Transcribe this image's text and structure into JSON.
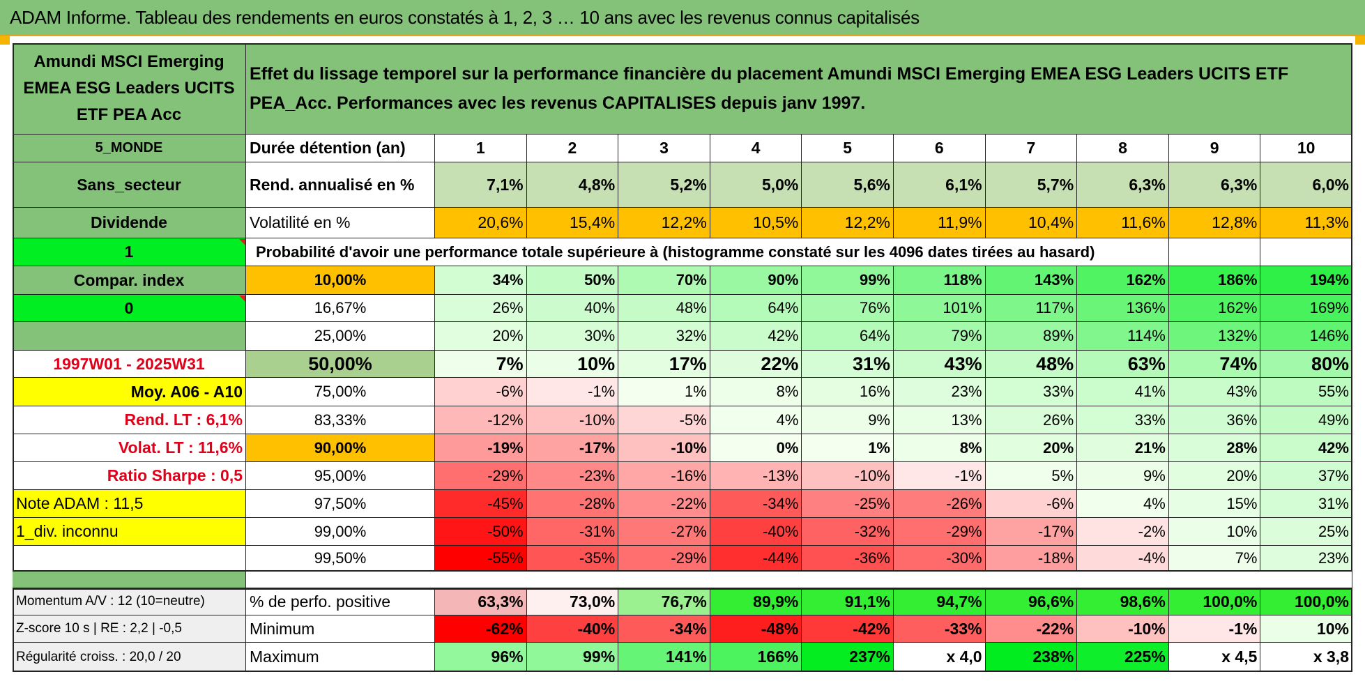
{
  "window": {
    "title": "ADAM Informe. Tableau des rendements en euros constatés à 1, 2, 3 … 10 ans avec les revenus connus capitalisés"
  },
  "fund": {
    "name": "Amundi MSCI Emerging EMEA ESG Leaders UCITS ETF PEA  Acc",
    "description": "Effet du lissage temporel sur la performance financière du placement Amundi MSCI Emerging EMEA ESG Leaders UCITS ETF PEA_Acc. Performances avec les revenus CAPITALISES depuis janv 1997.",
    "zone": "5_MONDE",
    "sector": "Sans_secteur",
    "dividend_label": "Dividende",
    "dividend_value": "1",
    "compar_label": "Compar. index",
    "compar_value": "0",
    "period": "1997W01 - 2025W31",
    "moy": "Moy. A06 - A10",
    "rend_lt": "Rend. LT :    6,1%",
    "volat_lt": "Volat. LT :    11,6%",
    "sharpe": "Ratio Sharpe :    0,5",
    "note": "Note ADAM : 11,5",
    "div_status": "1_div. inconnu"
  },
  "header": {
    "duration_label": "Durée détention (an)",
    "years": [
      "1",
      "2",
      "3",
      "4",
      "5",
      "6",
      "7",
      "8",
      "9",
      "10"
    ],
    "rend_label": "Rend. annualisé en %",
    "rend": [
      "7,1%",
      "4,8%",
      "5,2%",
      "5,0%",
      "5,6%",
      "6,1%",
      "5,7%",
      "6,3%",
      "6,3%",
      "6,0%"
    ],
    "vol_label": "Volatilité en %",
    "vol": [
      "20,6%",
      "15,4%",
      "12,2%",
      "10,5%",
      "12,2%",
      "11,9%",
      "10,4%",
      "11,6%",
      "12,8%",
      "11,3%"
    ],
    "prob_label": "Probabilité d'avoir une performance totale supérieure à (histogramme constaté sur les 4096 dates tirées au hasard)"
  },
  "prob_rows": [
    {
      "p": "10,00%",
      "v": [
        "34%",
        "50%",
        "70%",
        "90%",
        "99%",
        "118%",
        "143%",
        "162%",
        "186%",
        "194%"
      ]
    },
    {
      "p": "16,67%",
      "v": [
        "26%",
        "40%",
        "48%",
        "64%",
        "76%",
        "101%",
        "117%",
        "136%",
        "162%",
        "169%"
      ]
    },
    {
      "p": "25,00%",
      "v": [
        "20%",
        "30%",
        "32%",
        "42%",
        "64%",
        "79%",
        "89%",
        "114%",
        "132%",
        "146%"
      ]
    },
    {
      "p": "50,00%",
      "v": [
        "7%",
        "10%",
        "17%",
        "22%",
        "31%",
        "43%",
        "48%",
        "63%",
        "74%",
        "80%"
      ]
    },
    {
      "p": "75,00%",
      "v": [
        "-6%",
        "-1%",
        "1%",
        "8%",
        "16%",
        "23%",
        "33%",
        "41%",
        "43%",
        "55%"
      ]
    },
    {
      "p": "83,33%",
      "v": [
        "-12%",
        "-10%",
        "-5%",
        "4%",
        "9%",
        "13%",
        "26%",
        "33%",
        "36%",
        "49%"
      ]
    },
    {
      "p": "90,00%",
      "v": [
        "-19%",
        "-17%",
        "-10%",
        "0%",
        "1%",
        "8%",
        "20%",
        "21%",
        "28%",
        "42%"
      ]
    },
    {
      "p": "95,00%",
      "v": [
        "-29%",
        "-23%",
        "-16%",
        "-13%",
        "-10%",
        "-1%",
        "5%",
        "9%",
        "20%",
        "37%"
      ]
    },
    {
      "p": "97,50%",
      "v": [
        "-45%",
        "-28%",
        "-22%",
        "-34%",
        "-25%",
        "-26%",
        "-6%",
        "4%",
        "15%",
        "31%"
      ]
    },
    {
      "p": "99,00%",
      "v": [
        "-50%",
        "-31%",
        "-27%",
        "-40%",
        "-32%",
        "-29%",
        "-17%",
        "-2%",
        "10%",
        "25%"
      ]
    },
    {
      "p": "99,50%",
      "v": [
        "-55%",
        "-35%",
        "-29%",
        "-44%",
        "-36%",
        "-30%",
        "-18%",
        "-4%",
        "7%",
        "23%"
      ]
    }
  ],
  "bottom": {
    "momentum": "Momentum A/V : 12 (10=neutre)",
    "zscore": "Z-score 10 s | RE : 2,2 | -0,5",
    "regularite": "Régularité croiss. : 20,0 / 20",
    "pos_label": "% de perfo. positive",
    "pos": [
      "63,3%",
      "73,0%",
      "76,7%",
      "89,9%",
      "91,1%",
      "94,7%",
      "96,6%",
      "98,6%",
      "100,0%",
      "100,0%"
    ],
    "min_label": "Minimum",
    "min": [
      "-62%",
      "-40%",
      "-34%",
      "-48%",
      "-42%",
      "-33%",
      "-22%",
      "-10%",
      "-1%",
      "10%"
    ],
    "max_label": "Maximum",
    "max": [
      "96%",
      "99%",
      "141%",
      "166%",
      "237%",
      "x 4,0",
      "238%",
      "225%",
      "x 4,5",
      "x 3,8"
    ]
  },
  "colors": {
    "title_green": "#84c27a",
    "side_green": "#84c27a",
    "bright_green": "#00ee22",
    "yellow": "#ffff00",
    "orange": "#ffc000",
    "red_text": "#e0001a"
  }
}
